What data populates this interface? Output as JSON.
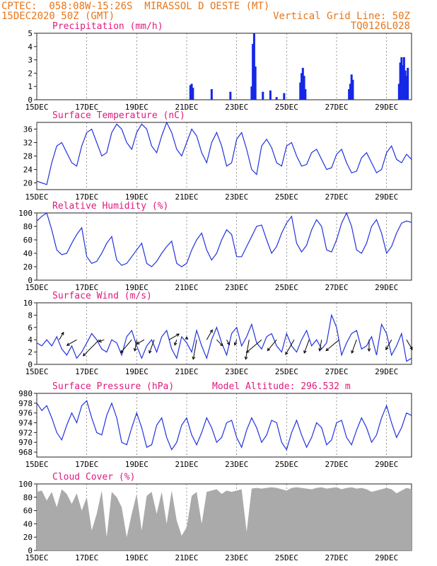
{
  "header": {
    "line1_left": "CPTEC:  058:08W-15:26S  MIRASSOL D OESTE (MT)",
    "line2_left": "15DEC2020 50Z (GMT)",
    "line2_right": "Vertical Grid Line: 50Z",
    "line3_right": "TQ0126L028"
  },
  "colors": {
    "header": "#e8761a",
    "title": "#e0197d",
    "line": "#2233dd",
    "bar": "#1428e6",
    "cloud": "#aaaaaa",
    "grid": "#222222"
  },
  "x_tick_labels": [
    "15DEC",
    "17DEC",
    "19DEC",
    "21DEC",
    "23DEC",
    "25DEC",
    "27DEC",
    "29DEC"
  ],
  "x_tick_days": [
    0,
    2,
    4,
    6,
    8,
    10,
    12,
    14
  ],
  "x_range_days": [
    0,
    15
  ],
  "chart_data": [
    {
      "type": "bar",
      "title": "Precipitation (mm/h)",
      "ylim": [
        0,
        5
      ],
      "yticks": [
        0,
        1,
        2,
        3,
        4,
        5
      ],
      "x_day": [
        6.15,
        6.2,
        6.25,
        7.0,
        7.75,
        8.6,
        8.65,
        8.7,
        8.75,
        9.05,
        9.35,
        9.6,
        9.9,
        10.55,
        10.6,
        10.65,
        10.7,
        10.75,
        12.5,
        12.55,
        12.6,
        12.65,
        14.5,
        14.55,
        14.6,
        14.65,
        14.7,
        14.75,
        14.8,
        14.85
      ],
      "values": [
        1.1,
        1.2,
        0.9,
        0.8,
        0.6,
        1.0,
        4.2,
        5.0,
        2.5,
        0.6,
        0.7,
        0.2,
        0.5,
        1.3,
        2.0,
        2.4,
        1.8,
        0.8,
        0.8,
        1.2,
        1.9,
        1.5,
        1.2,
        2.8,
        3.2,
        2.6,
        3.2,
        2.2,
        1.8,
        2.4
      ]
    },
    {
      "type": "line",
      "title": "Surface Temperature (nC)",
      "ylim": [
        18,
        38
      ],
      "yticks": [
        20,
        24,
        28,
        32,
        36
      ],
      "x_day": [
        0.0,
        0.2,
        0.4,
        0.6,
        0.8,
        1.0,
        1.2,
        1.4,
        1.6,
        1.8,
        2.0,
        2.2,
        2.4,
        2.6,
        2.8,
        3.0,
        3.2,
        3.4,
        3.6,
        3.8,
        4.0,
        4.2,
        4.4,
        4.6,
        4.8,
        5.0,
        5.2,
        5.4,
        5.6,
        5.8,
        6.0,
        6.2,
        6.4,
        6.6,
        6.8,
        7.0,
        7.2,
        7.4,
        7.6,
        7.8,
        8.0,
        8.2,
        8.4,
        8.6,
        8.8,
        9.0,
        9.2,
        9.4,
        9.6,
        9.8,
        10.0,
        10.2,
        10.4,
        10.6,
        10.8,
        11.0,
        11.2,
        11.4,
        11.6,
        11.8,
        12.0,
        12.2,
        12.4,
        12.6,
        12.8,
        13.0,
        13.2,
        13.4,
        13.6,
        13.8,
        14.0,
        14.2,
        14.4,
        14.6,
        14.8,
        15.0
      ],
      "values": [
        20.5,
        20.0,
        19.5,
        26.0,
        31.0,
        32.0,
        29.0,
        26.0,
        25.0,
        31.0,
        35.0,
        36.0,
        32.0,
        28.0,
        29.0,
        35.0,
        37.5,
        36.0,
        32.0,
        30.0,
        35.0,
        37.5,
        36.0,
        31.0,
        29.0,
        34.0,
        38.0,
        35.0,
        30.0,
        28.0,
        32.0,
        36.0,
        34.0,
        29.0,
        26.0,
        32.0,
        35.0,
        31.0,
        25.0,
        26.0,
        33.0,
        35.0,
        30.0,
        24.0,
        22.5,
        31.0,
        33.0,
        30.5,
        26.0,
        25.0,
        31.0,
        32.0,
        28.0,
        25.0,
        25.5,
        29.0,
        30.0,
        27.0,
        24.0,
        24.5,
        28.5,
        30.0,
        26.0,
        23.0,
        23.5,
        27.5,
        29.0,
        26.0,
        23.0,
        24.0,
        29.0,
        31.0,
        27.0,
        26.0,
        28.5,
        27.0
      ]
    },
    {
      "type": "line",
      "title": "Relative Humidity (%)",
      "ylim": [
        0,
        100
      ],
      "yticks": [
        0,
        20,
        40,
        60,
        80,
        100
      ],
      "x_day": [
        0.0,
        0.2,
        0.4,
        0.6,
        0.8,
        1.0,
        1.2,
        1.4,
        1.6,
        1.8,
        2.0,
        2.2,
        2.4,
        2.6,
        2.8,
        3.0,
        3.2,
        3.4,
        3.6,
        3.8,
        4.0,
        4.2,
        4.4,
        4.6,
        4.8,
        5.0,
        5.2,
        5.4,
        5.6,
        5.8,
        6.0,
        6.2,
        6.4,
        6.6,
        6.8,
        7.0,
        7.2,
        7.4,
        7.6,
        7.8,
        8.0,
        8.2,
        8.4,
        8.6,
        8.8,
        9.0,
        9.2,
        9.4,
        9.6,
        9.8,
        10.0,
        10.2,
        10.4,
        10.6,
        10.8,
        11.0,
        11.2,
        11.4,
        11.6,
        11.8,
        12.0,
        12.2,
        12.4,
        12.6,
        12.8,
        13.0,
        13.2,
        13.4,
        13.6,
        13.8,
        14.0,
        14.2,
        14.4,
        14.6,
        14.8,
        15.0
      ],
      "values": [
        88,
        95,
        100,
        75,
        45,
        38,
        40,
        55,
        68,
        78,
        35,
        25,
        28,
        40,
        55,
        65,
        30,
        22,
        25,
        35,
        45,
        55,
        25,
        20,
        28,
        40,
        50,
        58,
        25,
        20,
        25,
        45,
        60,
        70,
        45,
        30,
        40,
        60,
        75,
        68,
        35,
        35,
        50,
        65,
        80,
        82,
        60,
        40,
        50,
        70,
        85,
        95,
        55,
        42,
        52,
        75,
        90,
        80,
        45,
        42,
        60,
        85,
        100,
        80,
        45,
        40,
        55,
        80,
        90,
        70,
        40,
        50,
        70,
        85,
        88,
        86
      ]
    },
    {
      "type": "line",
      "title": "Surface Wind (m/s)",
      "ylim": [
        0,
        10
      ],
      "yticks": [
        0,
        2,
        4,
        6,
        8,
        10
      ],
      "x_day": [
        0.0,
        0.2,
        0.4,
        0.6,
        0.8,
        1.0,
        1.2,
        1.4,
        1.6,
        1.8,
        2.0,
        2.2,
        2.4,
        2.6,
        2.8,
        3.0,
        3.2,
        3.4,
        3.6,
        3.8,
        4.0,
        4.2,
        4.4,
        4.6,
        4.8,
        5.0,
        5.2,
        5.4,
        5.6,
        5.8,
        6.0,
        6.2,
        6.4,
        6.6,
        6.8,
        7.0,
        7.2,
        7.4,
        7.6,
        7.8,
        8.0,
        8.2,
        8.4,
        8.6,
        8.8,
        9.0,
        9.2,
        9.4,
        9.6,
        9.8,
        10.0,
        10.2,
        10.4,
        10.6,
        10.8,
        11.0,
        11.2,
        11.4,
        11.6,
        11.8,
        12.0,
        12.2,
        12.4,
        12.6,
        12.8,
        13.0,
        13.2,
        13.4,
        13.6,
        13.8,
        14.0,
        14.2,
        14.4,
        14.6,
        14.8,
        15.0
      ],
      "values": [
        3.5,
        3.0,
        4.0,
        3.0,
        4.5,
        2.5,
        1.5,
        3.0,
        1.0,
        2.0,
        3.5,
        5.0,
        4.0,
        2.5,
        2.0,
        4.0,
        3.5,
        1.5,
        4.5,
        5.5,
        3.0,
        1.0,
        3.0,
        4.0,
        2.0,
        4.5,
        5.5,
        2.5,
        1.0,
        4.5,
        3.5,
        2.0,
        5.5,
        3.0,
        1.0,
        4.0,
        6.0,
        3.5,
        1.5,
        5.0,
        6.0,
        3.0,
        4.5,
        6.5,
        3.5,
        2.5,
        4.5,
        5.0,
        3.0,
        2.0,
        5.0,
        3.0,
        2.0,
        4.0,
        5.5,
        3.0,
        4.0,
        2.5,
        3.5,
        8.0,
        6.0,
        1.5,
        3.5,
        5.0,
        5.5,
        2.5,
        3.0,
        4.5,
        1.5,
        6.5,
        5.0,
        1.5,
        3.0,
        5.0,
        0.5,
        1.0
      ],
      "arrows_day": [
        0.9,
        1.6,
        2.5,
        2.7,
        3.8,
        4.0,
        4.3,
        4.7,
        5.3,
        5.6,
        6.0,
        6.4,
        6.8,
        7.2,
        7.6,
        8.0,
        8.5,
        9.0,
        9.6,
        10.3,
        10.9,
        11.4,
        12.1,
        12.8,
        13.3,
        14.2,
        14.8
      ],
      "arrows_speed": [
        1.5,
        2.0,
        4.0,
        1.0,
        3.0,
        2.0,
        1.5,
        2.5,
        2.0,
        1.0,
        0.5,
        3.5,
        2.0,
        1.5,
        1.0,
        1.0,
        3.5,
        3.5,
        2.5,
        3.0,
        2.5,
        2.0,
        3.0,
        2.5,
        2.0,
        2.0,
        2.0
      ],
      "arrows_dir_deg": [
        300,
        150,
        135,
        160,
        130,
        100,
        150,
        110,
        330,
        110,
        270,
        100,
        300,
        45,
        60,
        110,
        100,
        140,
        130,
        120,
        110,
        100,
        140,
        110,
        90,
        120,
        60
      ]
    },
    {
      "type": "line",
      "title": "Surface Pressure (hPa)",
      "annotation": "Model Altitude: 296.532 m",
      "ylim": [
        967,
        980
      ],
      "yticks": [
        968,
        970,
        972,
        974,
        976,
        978,
        980
      ],
      "x_day": [
        0.0,
        0.2,
        0.4,
        0.6,
        0.8,
        1.0,
        1.2,
        1.4,
        1.6,
        1.8,
        2.0,
        2.2,
        2.4,
        2.6,
        2.8,
        3.0,
        3.2,
        3.4,
        3.6,
        3.8,
        4.0,
        4.2,
        4.4,
        4.6,
        4.8,
        5.0,
        5.2,
        5.4,
        5.6,
        5.8,
        6.0,
        6.2,
        6.4,
        6.6,
        6.8,
        7.0,
        7.2,
        7.4,
        7.6,
        7.8,
        8.0,
        8.2,
        8.4,
        8.6,
        8.8,
        9.0,
        9.2,
        9.4,
        9.6,
        9.8,
        10.0,
        10.2,
        10.4,
        10.6,
        10.8,
        11.0,
        11.2,
        11.4,
        11.6,
        11.8,
        12.0,
        12.2,
        12.4,
        12.6,
        12.8,
        13.0,
        13.2,
        13.4,
        13.6,
        13.8,
        14.0,
        14.2,
        14.4,
        14.6,
        14.8,
        15.0
      ],
      "values": [
        978.0,
        976.5,
        977.5,
        975.0,
        972.0,
        970.5,
        973.5,
        976.0,
        974.0,
        977.5,
        978.5,
        975.0,
        972.0,
        971.5,
        975.5,
        978.0,
        975.0,
        970.0,
        969.5,
        973.0,
        976.0,
        973.0,
        969.0,
        969.5,
        973.5,
        975.0,
        971.0,
        968.5,
        970.0,
        973.5,
        975.0,
        971.5,
        969.5,
        972.0,
        975.0,
        973.0,
        970.0,
        971.0,
        974.0,
        974.5,
        971.0,
        969.0,
        972.5,
        975.0,
        973.0,
        970.0,
        971.5,
        974.5,
        974.0,
        970.0,
        968.5,
        972.0,
        974.5,
        971.5,
        969.0,
        971.0,
        974.0,
        973.0,
        969.5,
        970.5,
        974.0,
        974.5,
        971.0,
        969.5,
        972.5,
        975.0,
        973.0,
        970.0,
        971.5,
        975.0,
        977.5,
        974.0,
        971.0,
        973.0,
        976.0,
        975.5
      ]
    },
    {
      "type": "area",
      "title": "Cloud Cover (%)",
      "ylim": [
        0,
        100
      ],
      "yticks": [
        0,
        20,
        40,
        60,
        80,
        100
      ],
      "x_day": [
        0.0,
        0.2,
        0.4,
        0.6,
        0.8,
        1.0,
        1.2,
        1.4,
        1.6,
        1.8,
        2.0,
        2.2,
        2.4,
        2.6,
        2.8,
        3.0,
        3.2,
        3.4,
        3.6,
        3.8,
        4.0,
        4.2,
        4.4,
        4.6,
        4.8,
        5.0,
        5.2,
        5.4,
        5.6,
        5.8,
        6.0,
        6.2,
        6.4,
        6.6,
        6.8,
        7.0,
        7.2,
        7.4,
        7.6,
        7.8,
        8.0,
        8.2,
        8.4,
        8.6,
        8.8,
        9.0,
        9.2,
        9.4,
        9.6,
        9.8,
        10.0,
        10.2,
        10.4,
        10.6,
        10.8,
        11.0,
        11.2,
        11.4,
        11.6,
        11.8,
        12.0,
        12.2,
        12.4,
        12.6,
        12.8,
        13.0,
        13.2,
        13.4,
        13.6,
        13.8,
        14.0,
        14.2,
        14.4,
        14.6,
        14.8,
        15.0
      ],
      "values": [
        88,
        90,
        75,
        88,
        65,
        92,
        85,
        70,
        86,
        60,
        80,
        30,
        55,
        90,
        20,
        88,
        80,
        65,
        20,
        55,
        85,
        30,
        82,
        88,
        55,
        88,
        40,
        90,
        45,
        22,
        35,
        82,
        88,
        40,
        88,
        90,
        92,
        85,
        90,
        88,
        90,
        92,
        28,
        93,
        94,
        93,
        94,
        95,
        94,
        92,
        90,
        94,
        95,
        94,
        93,
        92,
        94,
        95,
        93,
        94,
        95,
        92,
        94,
        95,
        93,
        94,
        92,
        88,
        90,
        92,
        94,
        92,
        86,
        90,
        94,
        92
      ]
    }
  ]
}
